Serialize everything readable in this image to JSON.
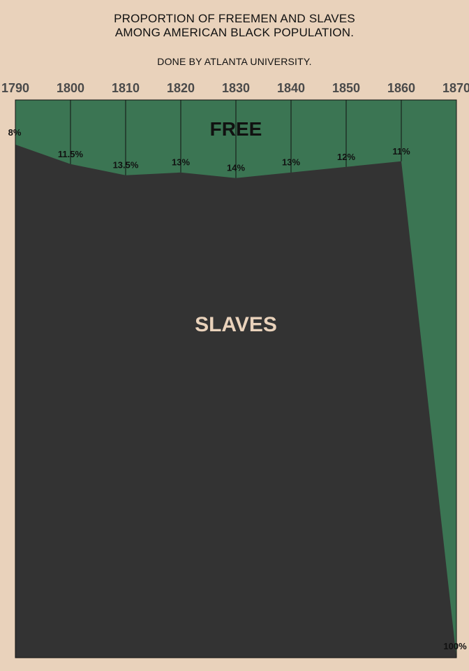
{
  "header": {
    "title_line1": "PROPORTION OF FREEMEN AND SLAVES",
    "title_line2": "AMONG AMERICAN BLACK POPULATION.",
    "subtitle": "DONE BY ATLANTA UNIVERSITY."
  },
  "colors": {
    "background": "#e9d2bb",
    "free": "#3b7553",
    "slaves": "#333333",
    "slaves_label": "#e9d2bb",
    "free_label": "#111111"
  },
  "chart_data": {
    "type": "area",
    "title": "PROPORTION OF FREEMEN AND SLAVES AMONG AMERICAN BLACK POPULATION.",
    "subtitle": "DONE BY ATLANTA UNIVERSITY.",
    "x": [
      1790,
      1800,
      1810,
      1820,
      1830,
      1840,
      1850,
      1860,
      1870
    ],
    "ylim": [
      0,
      100
    ],
    "grid": true,
    "series": [
      {
        "name": "FREE",
        "values": [
          8,
          11.5,
          13.5,
          13,
          14,
          13,
          12,
          11,
          100
        ]
      },
      {
        "name": "SLAVES",
        "values": [
          92,
          88.5,
          86.5,
          87,
          86,
          87,
          88,
          89,
          0
        ]
      }
    ],
    "point_labels": [
      "8%",
      "11.5%",
      "13.5%",
      "13%",
      "14%",
      "13%",
      "12%",
      "11%",
      "100%"
    ],
    "area_labels": {
      "free": "FREE",
      "slaves": "SLAVES"
    }
  }
}
